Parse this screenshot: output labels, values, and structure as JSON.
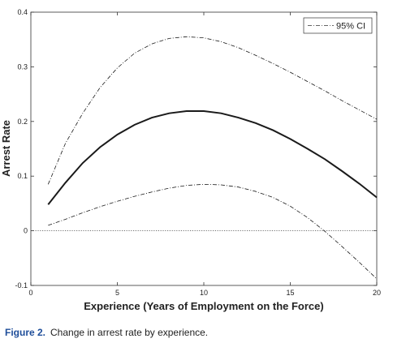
{
  "chart_data": {
    "type": "line",
    "xlabel": "Experience (Years of Employment on the Force)",
    "ylabel": "Arrest Rate",
    "xlim": [
      0,
      20
    ],
    "ylim": [
      -0.1,
      0.4
    ],
    "xticks": [
      0,
      5,
      10,
      15,
      20
    ],
    "yticks": [
      -0.1,
      0,
      0.1,
      0.2,
      0.3,
      0.4
    ],
    "grid": false,
    "legend_position": "top-right",
    "reference_line": {
      "y": 0,
      "style": "dotted"
    },
    "x": [
      1,
      2,
      3,
      4,
      5,
      6,
      7,
      8,
      9,
      10,
      11,
      12,
      13,
      14,
      15,
      16,
      17,
      18,
      19,
      20
    ],
    "series": [
      {
        "role": "estimate",
        "style": "solid",
        "values": [
          0.048,
          0.088,
          0.124,
          0.153,
          0.176,
          0.194,
          0.207,
          0.215,
          0.219,
          0.219,
          0.215,
          0.207,
          0.197,
          0.184,
          0.168,
          0.15,
          0.131,
          0.109,
          0.086,
          0.061
        ]
      },
      {
        "name": "95% CI",
        "role": "upper",
        "style": "dashdot",
        "values": [
          0.085,
          0.16,
          0.215,
          0.262,
          0.298,
          0.325,
          0.342,
          0.352,
          0.355,
          0.353,
          0.346,
          0.335,
          0.321,
          0.306,
          0.29,
          0.273,
          0.256,
          0.238,
          0.221,
          0.204
        ]
      },
      {
        "name": "95% CI",
        "role": "lower",
        "style": "dashdot",
        "values": [
          0.01,
          0.021,
          0.033,
          0.044,
          0.054,
          0.063,
          0.071,
          0.078,
          0.083,
          0.085,
          0.084,
          0.08,
          0.072,
          0.061,
          0.045,
          0.024,
          -0.001,
          -0.029,
          -0.058,
          -0.088
        ]
      }
    ],
    "legend": [
      {
        "label": "95% CI",
        "style": "dashdot"
      }
    ]
  },
  "caption": {
    "number": "Figure 2.",
    "text": "Change in arrest rate by experience."
  }
}
